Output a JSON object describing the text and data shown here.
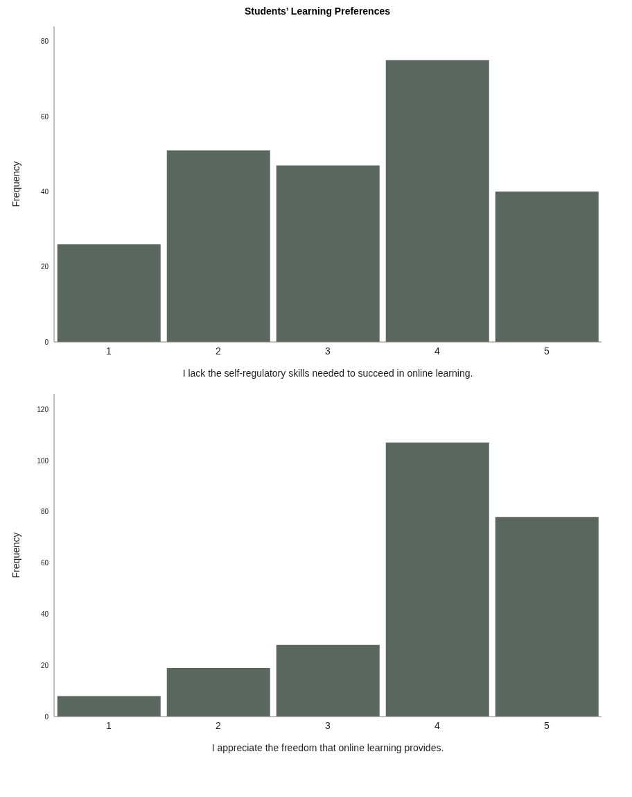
{
  "chart_data": [
    {
      "type": "bar",
      "title": "Students’ Learning Preferences",
      "xlabel": "I lack the self-regulatory skills needed to succeed in online learning.",
      "ylabel": "Frequency",
      "categories": [
        "1",
        "2",
        "3",
        "4",
        "5"
      ],
      "values": [
        26,
        51,
        47,
        75,
        40
      ],
      "color": "#5a6660",
      "ylim": [
        0,
        84
      ],
      "yticks": [
        0,
        20,
        40,
        60,
        80
      ],
      "grid": false
    },
    {
      "type": "bar",
      "xlabel": "I appreciate the freedom that online learning provides.",
      "ylabel": "Frequency",
      "categories": [
        "1",
        "2",
        "3",
        "4",
        "5"
      ],
      "values": [
        8,
        19,
        28,
        107,
        78
      ],
      "color": "#5a6660",
      "ylim": [
        0,
        126
      ],
      "yticks": [
        0,
        20,
        40,
        60,
        80,
        100,
        120
      ],
      "grid": false
    }
  ]
}
